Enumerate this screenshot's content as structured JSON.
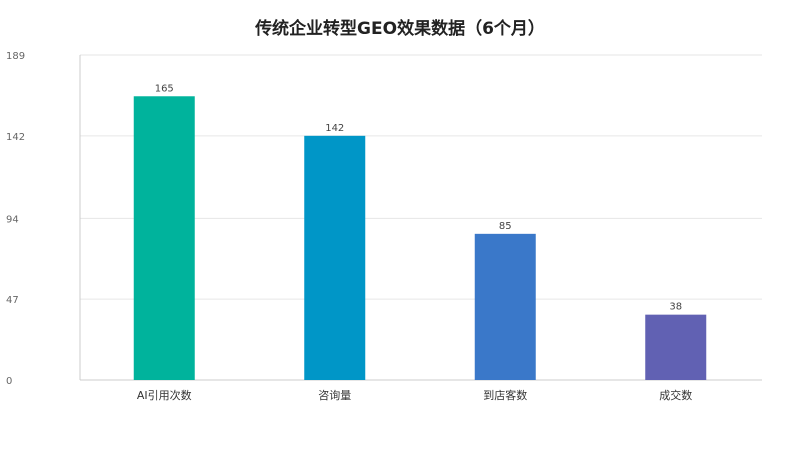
{
  "chart_data": {
    "type": "bar",
    "title": "传统企业转型GEO效果数据（6个月）",
    "categories": [
      "AI引用次数",
      "咨询量",
      "到店客数",
      "成交数"
    ],
    "values": [
      165,
      142,
      85,
      38
    ],
    "colors": [
      "#00b39c",
      "#0096c7",
      "#3a78c9",
      "#6161b3"
    ],
    "yticks": [
      0,
      47,
      94,
      142,
      189
    ],
    "ylim": [
      0,
      189
    ],
    "xlabel": "",
    "ylabel": "",
    "grid": true,
    "legend": "none"
  }
}
